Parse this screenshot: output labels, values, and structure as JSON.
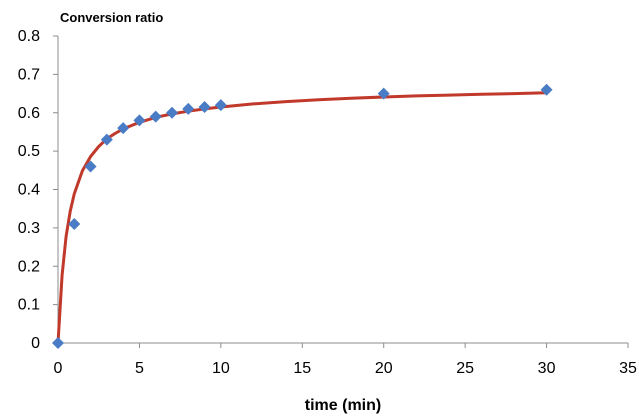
{
  "chart_data": {
    "type": "scatter",
    "ylabel": "Conversion ratio",
    "xlabel": "time (min)",
    "xlim": [
      0,
      35
    ],
    "ylim": [
      0,
      0.8
    ],
    "x_ticks": [
      0,
      5,
      10,
      15,
      20,
      25,
      30,
      35
    ],
    "y_ticks": [
      0,
      0.1,
      0.2,
      0.3,
      0.4,
      0.5,
      0.6,
      0.7,
      0.8
    ],
    "grid": false,
    "legend": "none",
    "series": [
      {
        "kind": "scatter",
        "marker": "diamond",
        "color": "#4a7cc6",
        "x": [
          0,
          1,
          2,
          3,
          4,
          5,
          6,
          7,
          8,
          9,
          10,
          20,
          30
        ],
        "y": [
          0,
          0.31,
          0.46,
          0.53,
          0.56,
          0.58,
          0.59,
          0.6,
          0.61,
          0.615,
          0.62,
          0.65,
          0.66
        ]
      },
      {
        "kind": "line",
        "color": "#c0392b",
        "x": [
          0,
          0.25,
          0.5,
          0.75,
          1,
          1.5,
          2,
          2.5,
          3,
          3.5,
          4,
          5,
          6,
          7,
          8,
          9,
          10,
          12,
          14,
          16,
          18,
          20,
          22,
          24,
          26,
          28,
          30
        ],
        "y": [
          0,
          0.177,
          0.278,
          0.343,
          0.389,
          0.449,
          0.486,
          0.512,
          0.532,
          0.546,
          0.558,
          0.575,
          0.588,
          0.597,
          0.604,
          0.61,
          0.615,
          0.623,
          0.629,
          0.634,
          0.638,
          0.641,
          0.644,
          0.646,
          0.648,
          0.65,
          0.652
        ]
      }
    ]
  }
}
